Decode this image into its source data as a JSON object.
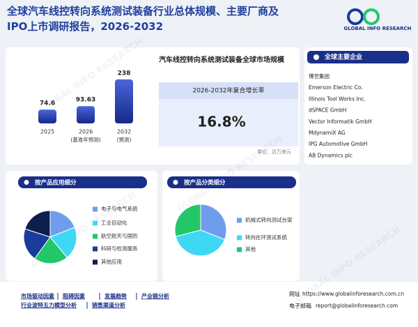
{
  "header": {
    "title": "全球汽车线控转向系统测试装备行业总体规模、主要厂商及IPO上市调研报告，2026-2032",
    "logo": "GLOBAL INFO RESEARCH"
  },
  "chart_data": [
    {
      "type": "bar",
      "title": "汽车线控转向系统测试装备全球市场规模",
      "categories": [
        "2025",
        "2026",
        "2032"
      ],
      "category_notes": [
        null,
        "(基准年预测)",
        "(预测)"
      ],
      "values": [
        74.6,
        93.63,
        238
      ],
      "color": "#2b45b8"
    },
    {
      "type": "pie",
      "title": "按产品应用细分",
      "categories": [
        "电子与电气系统",
        "工业自动化",
        "航空航天与国防",
        "科研与检测服务",
        "其他应用"
      ],
      "values": [
        19,
        20,
        21,
        20,
        20
      ],
      "colors": [
        "#6f9ded",
        "#3ed8f5",
        "#22c76a",
        "#1a3a9c",
        "#0d1f4d"
      ]
    },
    {
      "type": "pie",
      "title": "按产品分类细分",
      "categories": [
        "机械式转向测试台架",
        "转向在环测试系统",
        "其他"
      ],
      "values": [
        31,
        40,
        29
      ],
      "colors": [
        "#6f9ded",
        "#3ed8f5",
        "#22c76a"
      ]
    }
  ],
  "cagr": {
    "label": "2026-2032年复合增长率",
    "value": "16.8%"
  },
  "unit": "单位：百万美元",
  "companies": {
    "title": "全球主要企业",
    "list": [
      "博世集团",
      "Emerson Electric Co.",
      "Illinois Tool Works Inc.",
      "dSPACE GmbH",
      "Vector Informatik GmbH",
      "MdynamiX AG",
      "IPG Automotive GmbH",
      "AB Dynamics plc"
    ]
  },
  "footer": {
    "links": [
      "市场驱动因素",
      "阻碍因素",
      "发展趋势",
      "产业链分析",
      "行业波特五力模型分析",
      "销售渠道分析"
    ],
    "website_label": "网址",
    "website": "https://www.globalinforesearch.com.cn",
    "email_label": "电子邮箱",
    "email": "report@globalinforesearch.com"
  }
}
